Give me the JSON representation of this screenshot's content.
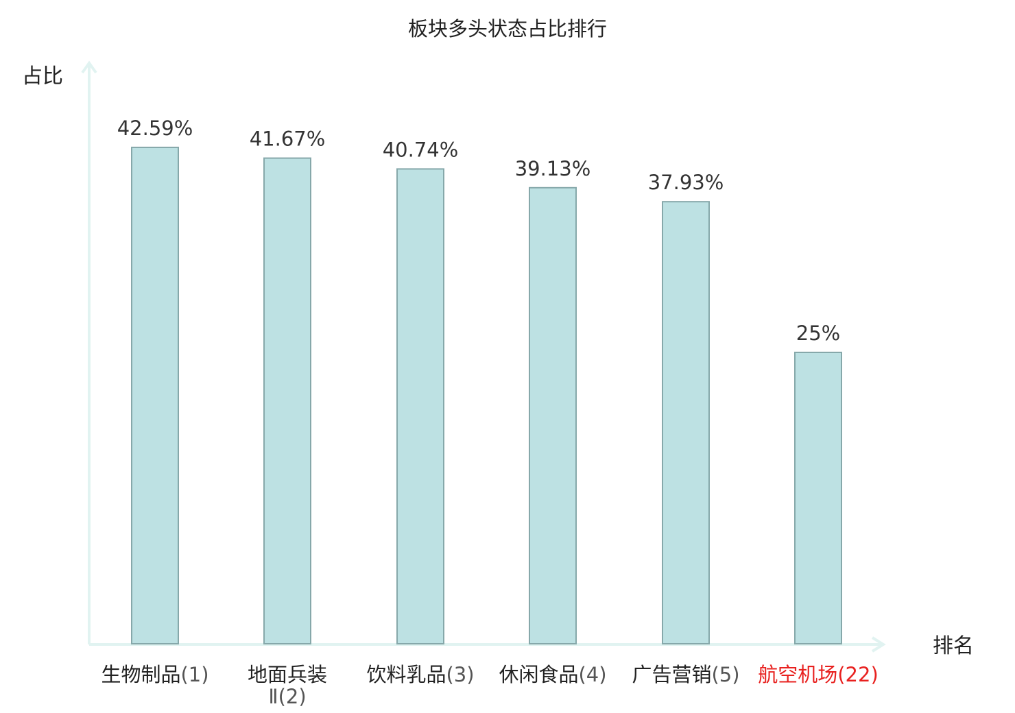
{
  "chart_data": {
    "type": "bar",
    "title": "板块多头状态占比排行",
    "ylabel": "占比",
    "xlabel": "排名",
    "ylim": [
      0,
      50
    ],
    "grid": false,
    "categories": [
      {
        "name": "生物制品",
        "rank": "(1)"
      },
      {
        "name": "地面兵装",
        "name2": "Ⅱ",
        "rank": "(2)"
      },
      {
        "name": "饮料乳品",
        "rank": "(3)"
      },
      {
        "name": "休闲食品",
        "rank": "(4)"
      },
      {
        "name": "广告营销",
        "rank": "(5)"
      },
      {
        "name": "航空机场",
        "rank": "(22)",
        "highlight": true
      }
    ],
    "values": [
      42.59,
      41.67,
      40.74,
      39.13,
      37.93,
      25
    ],
    "value_labels": [
      "42.59%",
      "41.67%",
      "40.74%",
      "39.13%",
      "37.93%",
      "25%"
    ],
    "colors": {
      "bar_fill": "#bde1e3",
      "bar_stroke": "#86a8aa",
      "axis": "#e1f3f1",
      "highlight_text": "#e8211f"
    }
  }
}
